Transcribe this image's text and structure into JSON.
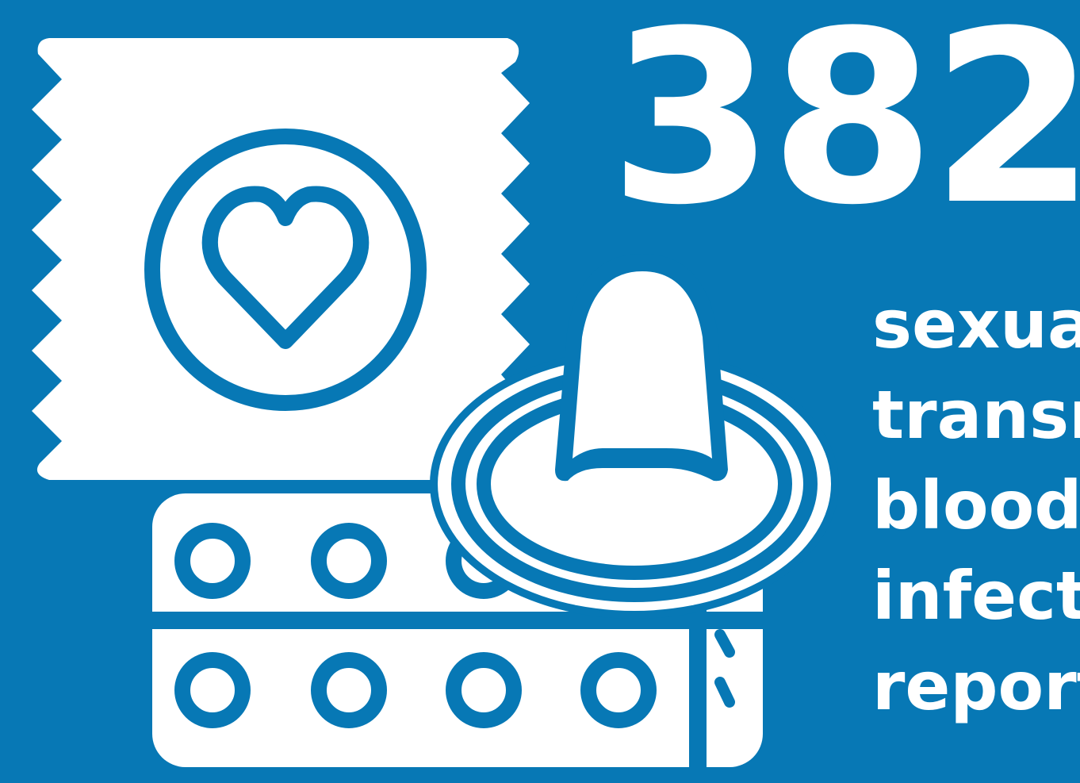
{
  "stat": {
    "number": "382",
    "label_lines": [
      "sexua",
      "transm",
      "blood",
      "infect",
      "report"
    ]
  },
  "colors": {
    "background": "#0778b5",
    "foreground": "#ffffff"
  },
  "icons": [
    "condom-wrapper-icon",
    "heart-icon",
    "pill-blister-pack-icon",
    "condom-icon"
  ]
}
